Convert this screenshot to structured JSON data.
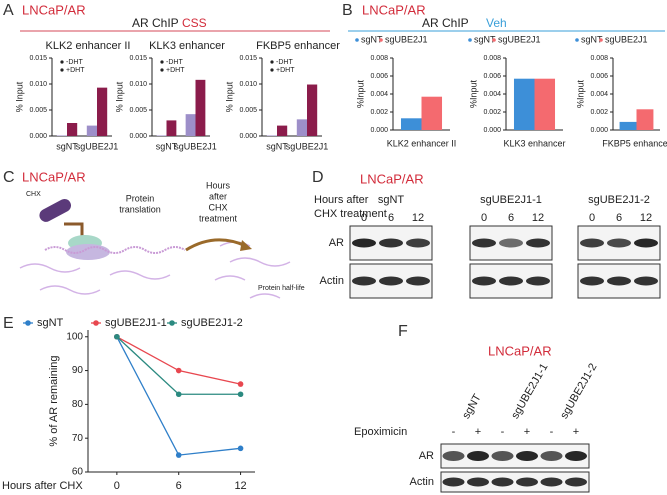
{
  "panels": {
    "A": {
      "letter": "A",
      "cell_line": "LNCaP/AR",
      "title": "AR ChIP",
      "condition": "CSS"
    },
    "B": {
      "letter": "B",
      "cell_line": "LNCaP/AR",
      "title": "AR ChIP",
      "condition": "Veh"
    },
    "C": {
      "letter": "C",
      "cell_line": "LNCaP/AR",
      "drug": "CHX",
      "step1": [
        "Protein",
        "translation"
      ],
      "step2": [
        "Hours",
        "after",
        "CHX",
        "treatment"
      ],
      "result": "Protein half-life"
    },
    "D": {
      "letter": "D",
      "cell_line": "LNCaP/AR",
      "time_header": [
        "Hours after",
        "CHX treatment"
      ],
      "groups": [
        "sgNT",
        "sgUBE2J1-1",
        "sgUBE2J1-2"
      ],
      "times": [
        "0",
        "6",
        "12"
      ],
      "rows": [
        "AR",
        "Actin"
      ]
    },
    "E": {
      "letter": "E"
    },
    "F": {
      "letter": "F",
      "cell_line": "LNCaP/AR",
      "lanes": [
        "sgNT",
        "sgUBE2J1-1",
        "sgUBE2J1-2"
      ],
      "treatment": "Epoximicin",
      "treatment_signs": [
        "-",
        "+",
        "-",
        "+",
        "-",
        "+"
      ],
      "rows": [
        "AR",
        "Actin"
      ]
    }
  },
  "chart_data": [
    {
      "type": "bar",
      "title": "KLK2 enhancer II",
      "ylabel": "% Input",
      "categories": [
        "sgNT",
        "sgUBE2J1"
      ],
      "series": [
        {
          "name": "-DHT",
          "color": "#9d8fc9",
          "values": [
            0.0001,
            0.002
          ]
        },
        {
          "name": "+DHT",
          "color": "#8b1c4b",
          "values": [
            0.0025,
            0.0093
          ]
        }
      ],
      "ylim": [
        0,
        0.015
      ],
      "yticks": [
        {
          "value": 0,
          "label": "0.000"
        },
        0.005,
        {
          "value": 0.01,
          "label": "0.010"
        },
        0.015
      ]
    },
    {
      "type": "bar",
      "title": "KLK3 enhancer",
      "ylabel": "% Input",
      "categories": [
        "sgNT",
        "sgUBE2J1"
      ],
      "series": [
        {
          "name": "-DHT",
          "color": "#9d8fc9",
          "values": [
            0.0001,
            0.0042
          ]
        },
        {
          "name": "+DHT",
          "color": "#8b1c4b",
          "values": [
            0.003,
            0.0108
          ]
        }
      ],
      "ylim": [
        0,
        0.015
      ],
      "yticks": [
        {
          "value": 0,
          "label": "0.000"
        },
        0.005,
        {
          "value": 0.01,
          "label": "0.010"
        },
        0.015
      ]
    },
    {
      "type": "bar",
      "title": "FKBP5 enhancer",
      "ylabel": "% Input",
      "categories": [
        "sgNT",
        "sgUBE2J1"
      ],
      "series": [
        {
          "name": "-DHT",
          "color": "#9d8fc9",
          "values": [
            0.0001,
            0.0032
          ]
        },
        {
          "name": "+DHT",
          "color": "#8b1c4b",
          "values": [
            0.002,
            0.0099
          ]
        }
      ],
      "ylim": [
        0,
        0.015
      ],
      "yticks": [
        {
          "value": 0,
          "label": "0.000"
        },
        0.005,
        {
          "value": 0.01,
          "label": "0.010"
        },
        0.015
      ]
    },
    {
      "type": "bar",
      "title": "KLK2 enhancer II",
      "ylabel": "%Input",
      "series": [
        {
          "name": "sgNT",
          "color": "#3d8fd8",
          "values": [
            0.0013
          ]
        },
        {
          "name": "sgUBE2J1",
          "color": "#f46a6f",
          "values": [
            0.0037
          ]
        }
      ],
      "ylim": [
        0,
        0.008
      ],
      "yticks": [
        {
          "value": 0,
          "label": "0.000"
        },
        0.002,
        0.004,
        0.006,
        0.008
      ]
    },
    {
      "type": "bar",
      "title": "KLK3 enhancer",
      "ylabel": "%Input",
      "series": [
        {
          "name": "sgNT",
          "color": "#3d8fd8",
          "values": [
            0.0057
          ]
        },
        {
          "name": "sgUBE2J1",
          "color": "#f46a6f",
          "values": [
            0.0057
          ]
        }
      ],
      "ylim": [
        0,
        0.008
      ],
      "yticks": [
        {
          "value": 0,
          "label": "0.000"
        },
        0.002,
        0.004,
        0.006,
        0.008
      ]
    },
    {
      "type": "bar",
      "title": "FKBP5 enhancer",
      "ylabel": "%Input",
      "series": [
        {
          "name": "sgNT",
          "color": "#3d8fd8",
          "values": [
            0.0009
          ]
        },
        {
          "name": "sgUBE2J1",
          "color": "#f46a6f",
          "values": [
            0.0023
          ]
        }
      ],
      "ylim": [
        0,
        0.008
      ],
      "yticks": [
        {
          "value": 0,
          "label": "0.000"
        },
        0.002,
        0.004,
        0.006,
        0.008
      ]
    },
    {
      "type": "line",
      "ylabel": "% of AR remaining",
      "xlabel": "Hours after CHX",
      "x": [
        0,
        6,
        12
      ],
      "series": [
        {
          "name": "sgNT",
          "color": "#2f7fc9",
          "values": [
            100,
            65,
            67
          ]
        },
        {
          "name": "sgUBE2J1-1",
          "color": "#e8474f",
          "values": [
            100,
            90,
            86
          ]
        },
        {
          "name": "sgUBE2J1-2",
          "color": "#2b8a80",
          "values": [
            100,
            83,
            83
          ]
        }
      ],
      "xlim": [
        -2.8,
        13.4
      ],
      "xticks": [
        0,
        6,
        12
      ],
      "ylim": [
        60,
        102
      ],
      "yticks": [
        60,
        70,
        80,
        90,
        100
      ]
    }
  ]
}
